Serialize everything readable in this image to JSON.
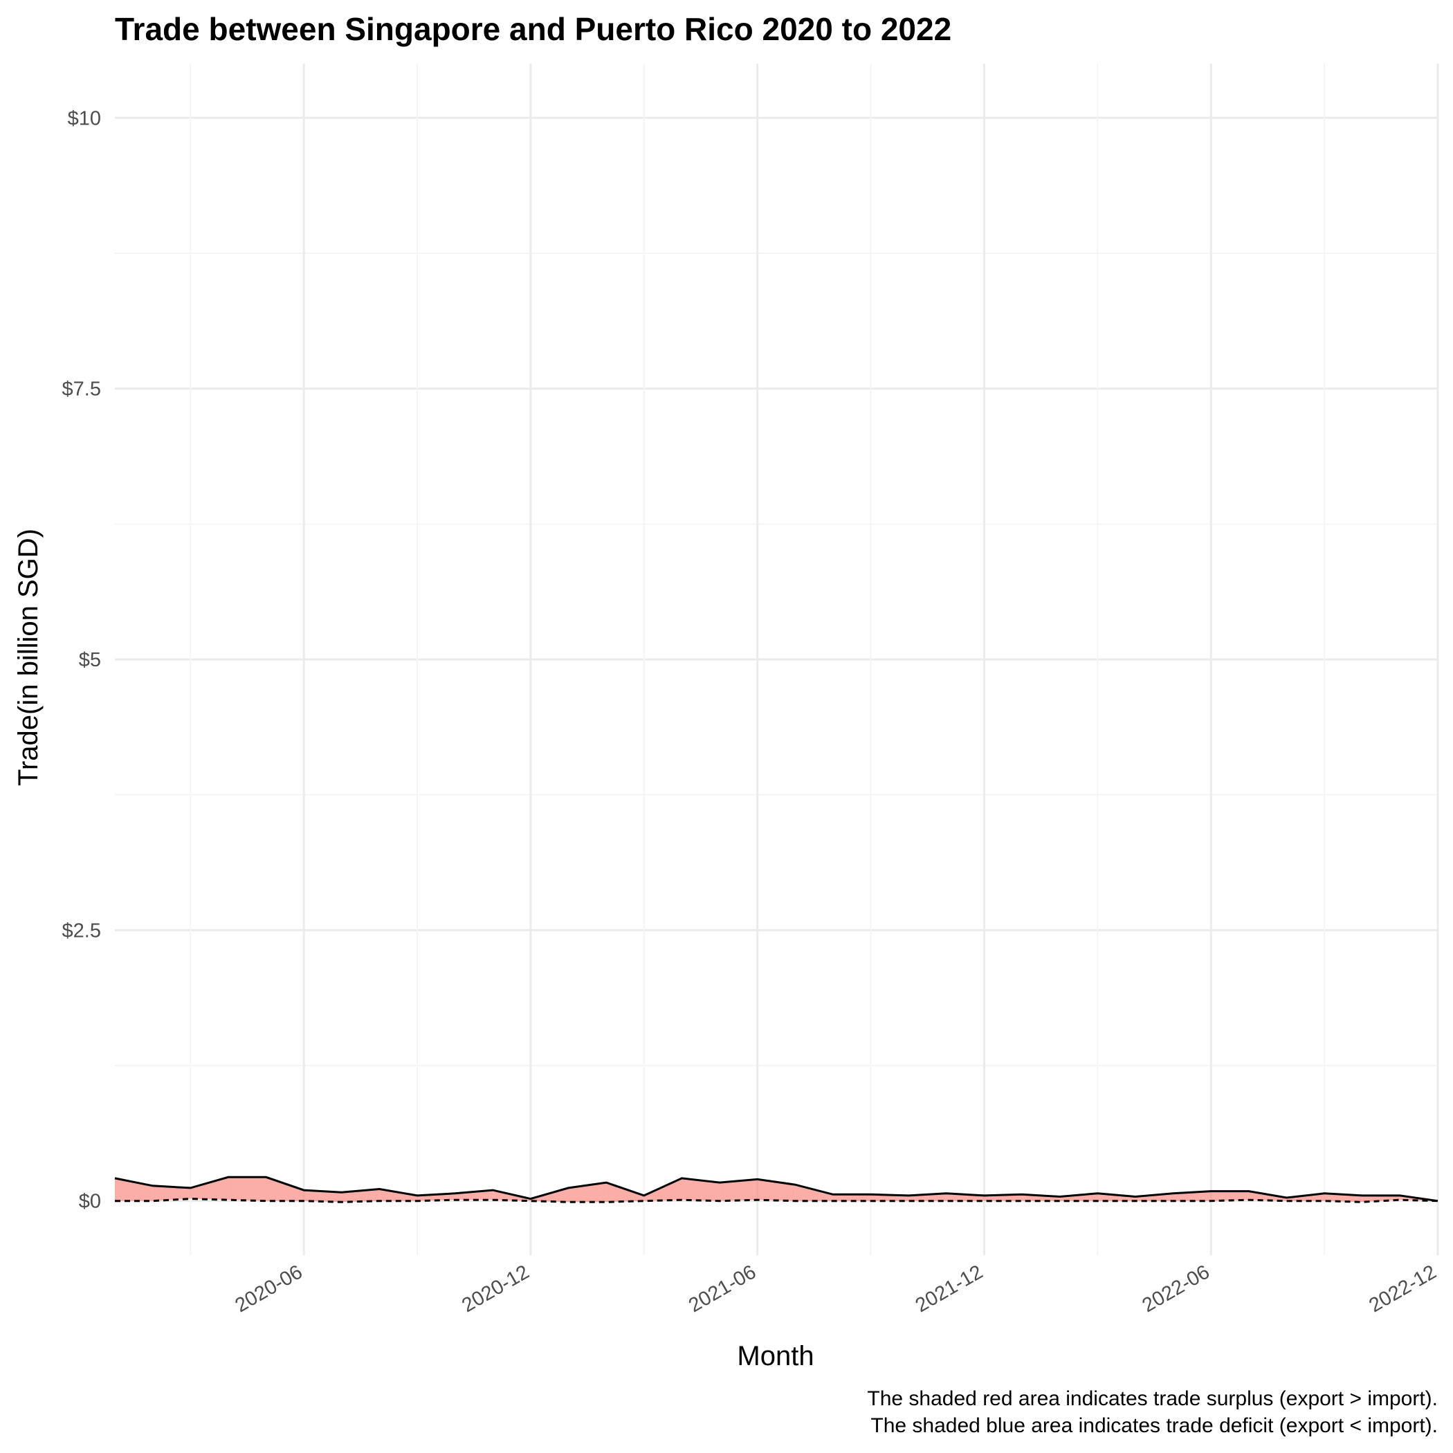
{
  "chart_data": {
    "type": "area",
    "title": "Trade between Singapore and Puerto Rico  2020 to 2022",
    "xlabel": "Month",
    "ylabel": "Trade(in billion SGD)",
    "y_ticks": [
      {
        "value": 0,
        "label": "$0"
      },
      {
        "value": 2.5,
        "label": "$2.5"
      },
      {
        "value": 5,
        "label": "$5"
      },
      {
        "value": 7.5,
        "label": "$7.5"
      },
      {
        "value": 10,
        "label": "$10"
      }
    ],
    "x_ticks": [
      "2020-06",
      "2020-12",
      "2021-06",
      "2021-12",
      "2022-06",
      "2022-12"
    ],
    "ylim": [
      -0.5,
      10.5
    ],
    "xlim": [
      "2020-01",
      "2022-12"
    ],
    "grid": true,
    "x": [
      "2020-01",
      "2020-02",
      "2020-03",
      "2020-04",
      "2020-05",
      "2020-06",
      "2020-07",
      "2020-08",
      "2020-09",
      "2020-10",
      "2020-11",
      "2020-12",
      "2021-01",
      "2021-02",
      "2021-03",
      "2021-04",
      "2021-05",
      "2021-06",
      "2021-07",
      "2021-08",
      "2021-09",
      "2021-10",
      "2021-11",
      "2021-12",
      "2022-01",
      "2022-02",
      "2022-03",
      "2022-04",
      "2022-05",
      "2022-06",
      "2022-07",
      "2022-08",
      "2022-09",
      "2022-10",
      "2022-11",
      "2022-12"
    ],
    "series": [
      {
        "values": [
          0.21,
          0.14,
          0.12,
          0.22,
          0.22,
          0.1,
          0.08,
          0.11,
          0.05,
          0.07,
          0.1,
          0.02,
          0.12,
          0.17,
          0.05,
          0.21,
          0.17,
          0.2,
          0.15,
          0.06,
          0.06,
          0.05,
          0.07,
          0.05,
          0.06,
          0.04,
          0.07,
          0.04,
          0.07,
          0.09,
          0.09,
          0.03,
          0.07,
          0.05,
          0.05,
          0.0
        ]
      },
      {
        "values": [
          0.0,
          0.0,
          0.02,
          0.01,
          0.0,
          0.0,
          -0.01,
          0.0,
          0.0,
          0.01,
          0.01,
          0.0,
          -0.01,
          -0.01,
          0.0,
          0.01,
          0.0,
          0.01,
          0.0,
          0.0,
          0.0,
          0.0,
          0.0,
          0.0,
          0.0,
          0.0,
          0.0,
          0.0,
          0.0,
          0.0,
          0.01,
          0.0,
          0.0,
          -0.01,
          0.01,
          0.0
        ]
      }
    ],
    "colors": {
      "surplus": "#f8766d",
      "deficit": "#00bfc4",
      "grid_major": "#ebebeb",
      "grid_minor": "#f5f5f5"
    },
    "caption": [
      "The shaded red area indicates trade surplus (export > import).",
      "The shaded blue area indicates trade deficit (export < import)."
    ]
  }
}
